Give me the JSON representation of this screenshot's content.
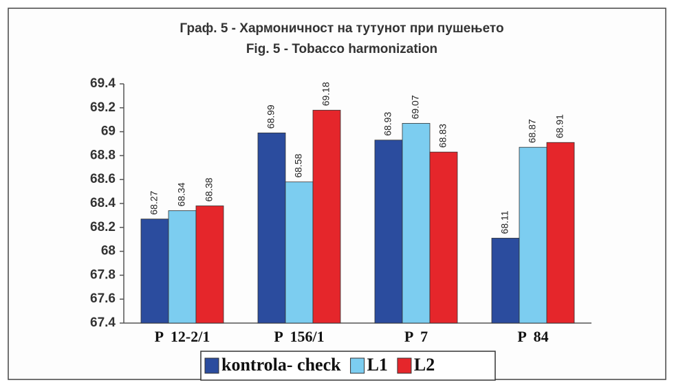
{
  "chart_data": {
    "type": "bar",
    "title": "Граф. 5 - Хармоничност на тутунот при пушењето",
    "subtitle": "Fig. 5  -  Tobacco harmonization",
    "categories": [
      "P  12-2/1",
      "P  156/1",
      "P  7",
      "P  84"
    ],
    "series": [
      {
        "name": "kontrola- check",
        "color": "#2b4c9e",
        "values": [
          68.27,
          68.99,
          68.93,
          68.11
        ]
      },
      {
        "name": "L1",
        "color": "#7ccdf0",
        "values": [
          68.34,
          68.58,
          69.07,
          68.87
        ]
      },
      {
        "name": "L2",
        "color": "#e5262b",
        "values": [
          68.38,
          69.18,
          68.83,
          68.91
        ]
      }
    ],
    "ylim": [
      67.4,
      69.4
    ],
    "yticks": [
      67.4,
      67.6,
      67.8,
      68,
      68.2,
      68.4,
      68.6,
      68.8,
      69,
      69.2,
      69.4
    ],
    "legend": "bottom"
  }
}
